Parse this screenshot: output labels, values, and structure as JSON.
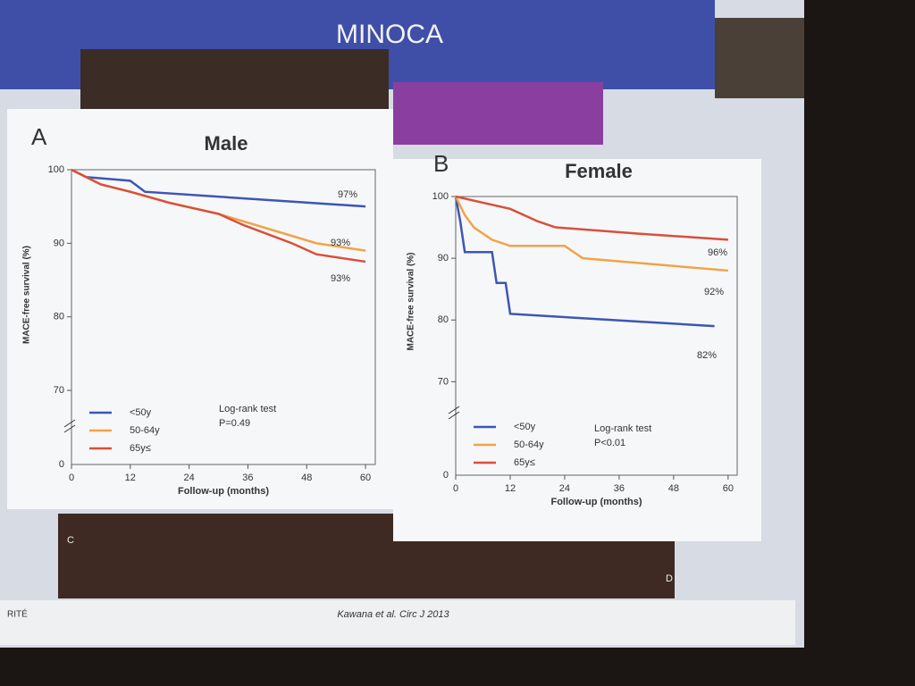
{
  "slide": {
    "title": "MINOCA",
    "citation": "Kawana et al. Circ J 2013",
    "footer_left": "RITÉ",
    "image_labels": [
      "C",
      "D"
    ]
  },
  "chart_data": [
    {
      "type": "line",
      "panel": "A",
      "title": "Male",
      "xlabel": "Follow-up (months)",
      "ylabel": "MACE-free survival (%)",
      "xlim": [
        0,
        62
      ],
      "xticks": [
        0,
        12,
        24,
        36,
        48,
        60
      ],
      "ylim": [
        66,
        100
      ],
      "yticks": [
        70,
        80,
        90,
        100
      ],
      "y_break_tick": 0,
      "legend": "lower left",
      "test_label": "Log-rank test",
      "p_label": "P=0.49",
      "series": [
        {
          "name": "<50y",
          "color": "#3d55b4",
          "x": [
            0,
            3,
            12,
            15,
            60
          ],
          "values": [
            100,
            99,
            98.5,
            97,
            95
          ]
        },
        {
          "name": "50-64y",
          "color": "#f0a448",
          "x": [
            0,
            6,
            12,
            20,
            30,
            40,
            50,
            60
          ],
          "values": [
            100,
            98,
            97,
            95.5,
            94,
            92,
            90,
            89
          ]
        },
        {
          "name": "65y≤",
          "color": "#d94f3a",
          "x": [
            0,
            6,
            12,
            20,
            30,
            35,
            45,
            50,
            60
          ],
          "values": [
            100,
            98,
            97,
            95.5,
            94,
            92.5,
            90,
            88.5,
            87.5
          ]
        }
      ],
      "annotations": [
        "97%",
        "93%",
        "93%"
      ]
    },
    {
      "type": "line",
      "panel": "B",
      "title": "Female",
      "xlabel": "Follow-up (months)",
      "ylabel": "MACE-free survival (%)",
      "xlim": [
        0,
        62
      ],
      "xticks": [
        0,
        12,
        24,
        36,
        48,
        60
      ],
      "ylim": [
        66,
        100
      ],
      "yticks": [
        70,
        80,
        90,
        100
      ],
      "y_break_tick": 0,
      "legend": "lower left",
      "test_label": "Log-rank test",
      "p_label": "P<0.01",
      "series": [
        {
          "name": "<50y",
          "color": "#3d55b4",
          "x": [
            0,
            1,
            2,
            8,
            9,
            11,
            12,
            57
          ],
          "values": [
            100,
            96,
            91,
            91,
            86,
            86,
            81,
            79
          ]
        },
        {
          "name": "50-64y",
          "color": "#f0a448",
          "x": [
            0,
            2,
            4,
            8,
            12,
            24,
            28,
            60
          ],
          "values": [
            100,
            97,
            95,
            93,
            92,
            92,
            90,
            88
          ]
        },
        {
          "name": "65y≤",
          "color": "#d94f3a",
          "x": [
            0,
            6,
            12,
            18,
            22,
            40,
            60
          ],
          "values": [
            100,
            99,
            98,
            96,
            95,
            94,
            93
          ]
        }
      ],
      "annotations": [
        "96%",
        "92%",
        "82%"
      ]
    }
  ]
}
